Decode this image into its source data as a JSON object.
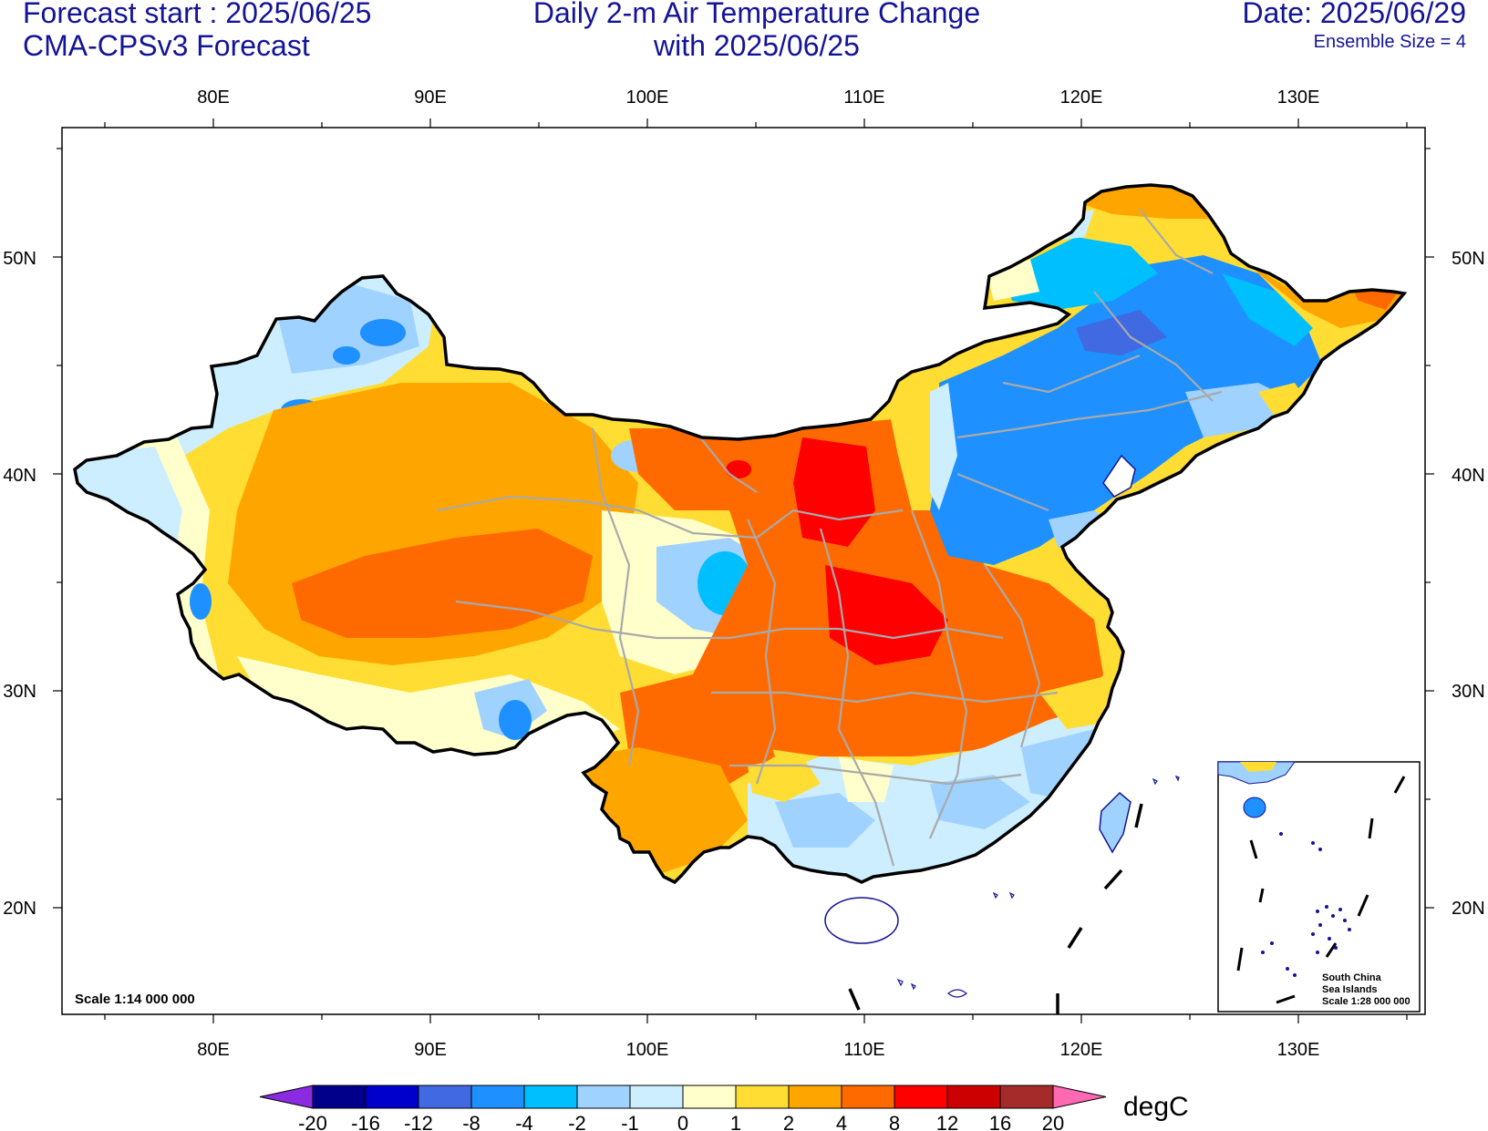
{
  "header": {
    "forecast_start": "Forecast start : 2025/06/25",
    "model": "CMA-CPSv3 Forecast",
    "title_line1": "Daily 2-m Air Temperature Change",
    "title_line2": "with 2025/06/25",
    "date": "Date: 2025/06/29",
    "ensemble": "Ensemble Size = 4"
  },
  "axes": {
    "lon_labels": [
      "80E",
      "90E",
      "100E",
      "110E",
      "120E",
      "130E"
    ],
    "lat_labels": [
      "50N",
      "40N",
      "30N",
      "20N"
    ]
  },
  "scale_note": "Scale 1:14 000 000",
  "inset": {
    "line1": "South China",
    "line2": "Sea Islands",
    "line3": "Scale 1:28 000 000"
  },
  "colorbar": {
    "unit": "degC",
    "labels": [
      "-20",
      "-16",
      "-12",
      "-8",
      "-4",
      "-2",
      "-1",
      "0",
      "1",
      "2",
      "4",
      "8",
      "12",
      "16",
      "20"
    ],
    "colors": [
      "#00008B",
      "#0000CD",
      "#4169E1",
      "#1E90FF",
      "#00BFFF",
      "#A0D2FF",
      "#CCEEFF",
      "#FFFFCC",
      "#FFDD33",
      "#FFA500",
      "#FF6A00",
      "#FF0000",
      "#CC0000",
      "#A52A2A"
    ],
    "under_color": "#8A2BE2",
    "over_color": "#FF69B4"
  },
  "colors": {
    "text_blue": "#141496",
    "border": "#000000",
    "province": "#A9A9A9"
  }
}
